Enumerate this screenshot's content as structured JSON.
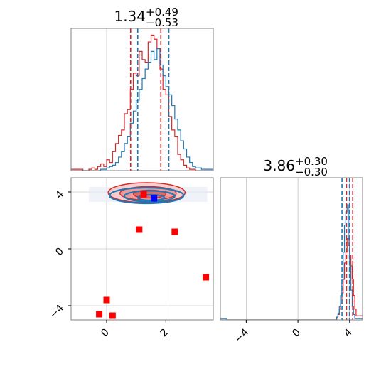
{
  "chart_data": {
    "type": "corner",
    "colors": {
      "red": "#d62728",
      "blue": "#1f77b4",
      "grid": "#b0b0b0",
      "frame": "#808080"
    },
    "panels": [
      {
        "id": "hist_p1",
        "type": "histogram",
        "title": {
          "main": "1.34",
          "sup": "+0.49",
          "sub": "−0.53"
        },
        "xlim": [
          -1.2,
          3.6
        ],
        "ylim": [
          0,
          1.05
        ],
        "grid_x": [
          0,
          2
        ],
        "red_quantiles": [
          0.81,
          1.83
        ],
        "blue_quantiles": [
          1.05,
          2.1
        ],
        "series": [
          {
            "name": "",
            "color": "red",
            "x": [
              -1.2,
              -0.8,
              -0.6,
              -0.5,
              -0.4,
              -0.3,
              -0.2,
              -0.1,
              0.0,
              0.1,
              0.2,
              0.3,
              0.4,
              0.5,
              0.6,
              0.7,
              0.8,
              0.9,
              1.0,
              1.1,
              1.2,
              1.3,
              1.4,
              1.5,
              1.6,
              1.7,
              1.8,
              1.9,
              2.0,
              2.1,
              2.2,
              2.3,
              2.4,
              2.5,
              2.6,
              2.7,
              2.8,
              3.0,
              3.2,
              3.6
            ],
            "y": [
              0.01,
              0.0,
              0.01,
              0.02,
              0.01,
              0.03,
              0.05,
              0.03,
              0.08,
              0.06,
              0.14,
              0.2,
              0.26,
              0.3,
              0.42,
              0.45,
              0.6,
              0.72,
              0.7,
              0.88,
              0.82,
              0.8,
              0.95,
              1.0,
              0.97,
              0.9,
              0.75,
              0.6,
              0.56,
              0.4,
              0.3,
              0.25,
              0.12,
              0.08,
              0.04,
              0.02,
              0.01,
              0.0,
              0.0,
              0.0
            ]
          },
          {
            "name": "",
            "color": "blue",
            "x": [
              -1.2,
              -0.4,
              -0.2,
              0.0,
              0.1,
              0.2,
              0.3,
              0.4,
              0.5,
              0.6,
              0.7,
              0.8,
              0.9,
              1.0,
              1.1,
              1.2,
              1.3,
              1.4,
              1.5,
              1.6,
              1.7,
              1.8,
              1.9,
              2.0,
              2.1,
              2.2,
              2.3,
              2.4,
              2.5,
              2.6,
              2.7,
              2.8,
              2.9,
              3.0,
              3.2,
              3.6
            ],
            "y": [
              0.0,
              0.0,
              0.01,
              0.02,
              0.03,
              0.04,
              0.06,
              0.1,
              0.14,
              0.2,
              0.25,
              0.35,
              0.44,
              0.52,
              0.6,
              0.68,
              0.75,
              0.8,
              0.88,
              0.82,
              0.9,
              0.78,
              0.7,
              0.62,
              0.56,
              0.48,
              0.38,
              0.3,
              0.22,
              0.16,
              0.1,
              0.06,
              0.03,
              0.02,
              0.01,
              0.0
            ]
          }
        ]
      },
      {
        "id": "hist_p2",
        "type": "histogram",
        "title": {
          "main": "3.86",
          "sup": "+0.30",
          "sub": "−0.30"
        },
        "xlim": [
          -6,
          5
        ],
        "ylim": [
          0,
          1.05
        ],
        "xticks": [
          -4,
          0,
          4
        ],
        "xtick_labels": [
          "−4",
          "0",
          "4"
        ],
        "grid_x": [
          -4,
          0,
          4
        ],
        "red_quantiles": [
          3.76,
          4.24
        ],
        "blue_quantiles": [
          3.41,
          3.99
        ],
        "series": [
          {
            "name": "",
            "color": "red",
            "x": [
              -6.0,
              2.8,
              3.0,
              3.1,
              3.2,
              3.3,
              3.4,
              3.5,
              3.6,
              3.7,
              3.8,
              3.9,
              4.0,
              4.1,
              4.2,
              4.3,
              4.4,
              4.5,
              5.0
            ],
            "y": [
              0.0,
              0.0,
              0.02,
              0.04,
              0.08,
              0.12,
              0.2,
              0.3,
              0.42,
              0.5,
              0.6,
              0.55,
              0.48,
              0.4,
              0.3,
              0.18,
              0.08,
              0.03,
              0.0
            ]
          },
          {
            "name": "",
            "color": "blue",
            "x": [
              -6.0,
              -5.5,
              2.8,
              3.0,
              3.1,
              3.2,
              3.3,
              3.4,
              3.5,
              3.6,
              3.7,
              3.8,
              3.9,
              4.0,
              4.1,
              4.2,
              4.3,
              4.4,
              5.0
            ],
            "y": [
              0.01,
              0.0,
              0.0,
              0.02,
              0.05,
              0.1,
              0.18,
              0.3,
              0.5,
              0.7,
              0.8,
              0.85,
              0.6,
              0.4,
              0.22,
              0.1,
              0.04,
              0.01,
              0.0
            ]
          }
        ]
      },
      {
        "id": "scatter_2d",
        "type": "contour-scatter",
        "xlim": [
          -1.2,
          3.6
        ],
        "ylim": [
          -5,
          5
        ],
        "xticks": [
          0,
          2
        ],
        "xtick_labels": [
          "0",
          "2"
        ],
        "yticks": [
          -4,
          0,
          4
        ],
        "ytick_labels": [
          "−4",
          "0",
          "4"
        ],
        "grid_x": [
          0,
          2
        ],
        "grid_y": [
          -4,
          0,
          4
        ],
        "red_contours": [
          {
            "cx": 1.35,
            "cy": 3.95,
            "rx": 1.3,
            "ry": 0.7
          },
          {
            "cx": 1.4,
            "cy": 3.9,
            "rx": 0.95,
            "ry": 0.48
          },
          {
            "cx": 1.45,
            "cy": 3.85,
            "rx": 0.55,
            "ry": 0.28
          }
        ],
        "blue_contours": [
          {
            "cx": 1.35,
            "cy": 3.75,
            "rx": 1.25,
            "ry": 0.55
          },
          {
            "cx": 1.45,
            "cy": 3.7,
            "rx": 0.85,
            "ry": 0.38
          },
          {
            "cx": 1.5,
            "cy": 3.6,
            "rx": 0.45,
            "ry": 0.2
          }
        ],
        "red_points": [
          {
            "x": 1.1,
            "y": 1.35
          },
          {
            "x": 2.3,
            "y": 1.2
          },
          {
            "x": 3.35,
            "y": -2.0
          },
          {
            "x": 0.0,
            "y": -3.6
          },
          {
            "x": -0.25,
            "y": -4.6
          },
          {
            "x": 0.2,
            "y": -4.7
          },
          {
            "x": 1.25,
            "y": 3.85
          }
        ],
        "blue_points": [
          {
            "x": 1.6,
            "y": 3.55
          }
        ]
      }
    ]
  }
}
